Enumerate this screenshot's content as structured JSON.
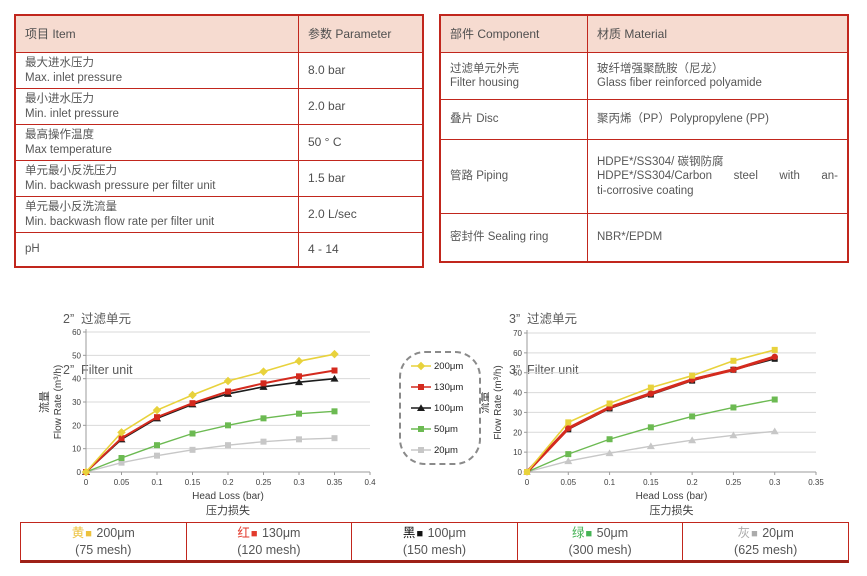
{
  "colors": {
    "table_border": "#c1261d",
    "table_header_bg": "#f6dbd0",
    "bottom_bar_underline": "#9e2017",
    "grid": "#d9d9d9",
    "axis": "#9b9b9b"
  },
  "spec_table": {
    "headers": [
      "项目 Item",
      "参数 Parameter"
    ],
    "rows": [
      {
        "cn": "最大进水压力",
        "en": "Max. inlet pressure",
        "value": "8.0 bar"
      },
      {
        "cn": "最小进水压力",
        "en": "Min. inlet pressure",
        "value": "2.0 bar"
      },
      {
        "cn": "最高操作温度",
        "en": "Max temperature",
        "value": "50 ° C"
      },
      {
        "cn": "单元最小反洗压力",
        "en": "Min. backwash pressure per filter unit",
        "value": "1.5 bar"
      },
      {
        "cn": "单元最小反洗流量",
        "en": "Min. backwash flow rate per filter unit",
        "value": "2.0 L/sec"
      },
      {
        "cn": "pH",
        "en": "",
        "value": "4 - 14"
      }
    ]
  },
  "material_table": {
    "headers": [
      "部件 Component",
      "材质 Material"
    ],
    "rows": [
      {
        "cn": "过滤单元外壳",
        "en": "Filter housing",
        "mat": [
          "玻纤增强聚酰胺（尼龙）",
          "Glass fiber reinforced polyamide",
          ""
        ]
      },
      {
        "cn": "叠片 Disc",
        "en": "",
        "mat": [
          "聚丙烯（PP）Polypropylene (PP)",
          "",
          ""
        ]
      },
      {
        "cn": "管路 Piping",
        "en": "",
        "mat": [
          "HDPE*/SS304/ 碳钢防腐",
          "HDPE*/SS304/Carbon steel with an-",
          "ti-corrosive coating"
        ]
      },
      {
        "cn": "密封件 Sealing ring",
        "en": "",
        "mat": [
          "NBR*/EPDM",
          "",
          ""
        ]
      }
    ]
  },
  "chart_data": [
    {
      "type": "line",
      "title_cn": "2”  过滤单元",
      "title_en": "2”  Filter unit",
      "xlabel": "Head Loss (bar)",
      "xlabel_cn": "压力损失",
      "ylabel_cn": "流量",
      "ylabel": "Flow Rate (m³/h)",
      "xlim": [
        0,
        0.4
      ],
      "ylim": [
        0,
        60
      ],
      "xticks": [
        0,
        0.05,
        0.1,
        0.15,
        0.2,
        0.25,
        0.3,
        0.35,
        0.4
      ],
      "yticks": [
        0,
        10,
        20,
        30,
        40,
        50,
        60
      ],
      "x": [
        0,
        0.05,
        0.1,
        0.15,
        0.2,
        0.25,
        0.3,
        0.35
      ],
      "grid": "horizontal",
      "series": [
        {
          "name": "20μm",
          "color": "#c7c7c7",
          "marker": "square",
          "width": 1.4,
          "values": [
            0,
            4,
            7,
            9.5,
            11.5,
            13,
            14,
            14.5
          ]
        },
        {
          "name": "50μm",
          "color": "#6cba52",
          "marker": "square",
          "width": 1.4,
          "values": [
            0,
            6,
            11.5,
            16.5,
            20,
            23,
            25,
            26
          ]
        },
        {
          "name": "100μm",
          "color": "#1c1c1c",
          "marker": "triangle",
          "width": 1.6,
          "values": [
            0,
            14,
            23,
            29,
            33.5,
            36.5,
            38.5,
            40
          ]
        },
        {
          "name": "130μm",
          "color": "#d42a1e",
          "marker": "square",
          "width": 2,
          "values": [
            0,
            14.5,
            23.5,
            29.5,
            34.5,
            38,
            41,
            43.5
          ]
        },
        {
          "name": "200μm",
          "color": "#e8d23c",
          "marker": "diamond",
          "width": 1.6,
          "values": [
            0,
            17,
            26.5,
            33,
            39,
            43,
            47.5,
            50.5
          ]
        }
      ]
    },
    {
      "type": "line",
      "title_cn": "3”  过滤单元",
      "title_en": "3”  Filter unit",
      "xlabel": "Head Loss (bar)",
      "xlabel_cn": "压力损失",
      "ylabel_cn": "流量",
      "ylabel": "Flow Rate (m³/h)",
      "xlim": [
        0,
        0.35
      ],
      "ylim": [
        0,
        70
      ],
      "xticks": [
        0,
        0.05,
        0.1,
        0.15,
        0.2,
        0.25,
        0.3,
        0.35
      ],
      "yticks": [
        0,
        10,
        20,
        30,
        40,
        50,
        60,
        70
      ],
      "x": [
        0,
        0.05,
        0.1,
        0.15,
        0.2,
        0.25,
        0.3
      ],
      "grid": "horizontal",
      "series": [
        {
          "name": "20μm",
          "color": "#c7c7c7",
          "marker": "triangle",
          "width": 1.4,
          "values": [
            0,
            5.5,
            9.5,
            13,
            16,
            18.5,
            20.5
          ]
        },
        {
          "name": "50μm",
          "color": "#6cba52",
          "marker": "square",
          "width": 1.4,
          "values": [
            0,
            9,
            16.5,
            22.5,
            28,
            32.5,
            36.5
          ]
        },
        {
          "name": "100μm",
          "color": "#1c1c1c",
          "marker": "square",
          "width": 1.6,
          "values": [
            0,
            21.5,
            32,
            39,
            46,
            51.5,
            57
          ]
        },
        {
          "name": "130μm",
          "color": "#d42a1e",
          "marker": "circle",
          "width": 3,
          "values": [
            0,
            22,
            32.5,
            39.5,
            46.5,
            51.5,
            58
          ]
        },
        {
          "name": "200μm",
          "color": "#e8d23c",
          "marker": "square",
          "width": 1.6,
          "values": [
            0,
            25,
            34.5,
            42.5,
            48.5,
            56,
            61.5
          ]
        }
      ]
    }
  ],
  "chart_legend": {
    "items": [
      {
        "label": "200μm",
        "color": "#e8d23c",
        "marker": "diamond"
      },
      {
        "label": "130μm",
        "color": "#d42a1e",
        "marker": "square"
      },
      {
        "label": "100μm",
        "color": "#1c1c1c",
        "marker": "triangle"
      },
      {
        "label": "50μm",
        "color": "#6cba52",
        "marker": "square"
      },
      {
        "label": "20μm",
        "color": "#c7c7c7",
        "marker": "square"
      }
    ]
  },
  "bottom_legend": {
    "items": [
      {
        "cn": "黄",
        "color": "#ecc13a",
        "label": "200μm",
        "mesh": "(75 mesh)"
      },
      {
        "cn": "红",
        "color": "#e23a2c",
        "label": "130μm",
        "mesh": "(120 mesh)"
      },
      {
        "cn": "黑",
        "color": "#111111",
        "label": "100μm",
        "mesh": "(150 mesh)"
      },
      {
        "cn": "绿",
        "color": "#45b354",
        "label": "50μm",
        "mesh": "(300 mesh)"
      },
      {
        "cn": "灰",
        "color": "#ababab",
        "label": "20μm",
        "mesh": "(625 mesh)"
      }
    ]
  }
}
